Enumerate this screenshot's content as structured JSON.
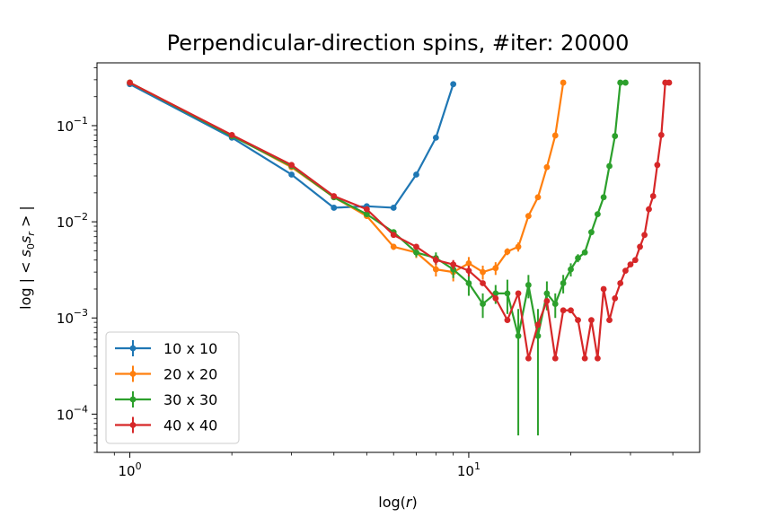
{
  "chart_data": {
    "type": "line",
    "title": "Perpendicular-direction spins, #iter: 20000",
    "xlabel": "log(r)",
    "ylabel": "log | < s0 sr > |",
    "xscale": "log",
    "yscale": "log",
    "xlim": [
      0.8,
      48
    ],
    "ylim": [
      4e-05,
      0.45
    ],
    "xticks": [
      {
        "value": 1,
        "base": "10",
        "exp": "0"
      },
      {
        "value": 10,
        "base": "10",
        "exp": "1"
      }
    ],
    "yticks": [
      {
        "value": 0.0001,
        "base": "10",
        "exp": "−4"
      },
      {
        "value": 0.001,
        "base": "10",
        "exp": "−3"
      },
      {
        "value": 0.01,
        "base": "10",
        "exp": "−2"
      },
      {
        "value": 0.1,
        "base": "10",
        "exp": "−1"
      }
    ],
    "grid": false,
    "legend_position": "lower-left",
    "series": [
      {
        "name": "10 x 10",
        "color": "#1f77b4",
        "x": [
          1,
          2,
          3,
          4,
          5,
          6,
          7,
          8,
          9
        ],
        "y": [
          0.27,
          0.075,
          0.031,
          0.014,
          0.0145,
          0.014,
          0.031,
          0.075,
          0.27
        ],
        "err": [
          0,
          0,
          0,
          0,
          0,
          0,
          0,
          0,
          0
        ]
      },
      {
        "name": "20 x 20",
        "color": "#ff7f0e",
        "x": [
          1,
          2,
          3,
          4,
          5,
          6,
          7,
          8,
          9,
          10,
          11,
          12,
          13,
          14,
          15,
          16,
          17,
          18,
          19
        ],
        "y": [
          0.28,
          0.079,
          0.037,
          0.018,
          0.0115,
          0.0055,
          0.0048,
          0.0032,
          0.003,
          0.0037,
          0.003,
          0.0033,
          0.0049,
          0.0055,
          0.0115,
          0.018,
          0.037,
          0.079,
          0.28
        ],
        "err": [
          0,
          0,
          0,
          0,
          0.0008,
          0.0004,
          0.0006,
          0.0005,
          0.0006,
          0.0006,
          0.0005,
          0.0005,
          0.0004,
          0.0006,
          0.0008,
          0,
          0,
          0,
          0
        ]
      },
      {
        "name": "30 x 30",
        "color": "#2ca02c",
        "x": [
          1,
          2,
          3,
          4,
          5,
          6,
          7,
          8,
          9,
          10,
          11,
          12,
          13,
          14,
          15,
          16,
          17,
          18,
          19,
          20,
          21,
          22,
          23,
          24,
          25,
          26,
          27,
          28,
          29
        ],
        "y": [
          0.28,
          0.078,
          0.038,
          0.018,
          0.012,
          0.0078,
          0.0048,
          0.0042,
          0.0032,
          0.0023,
          0.0014,
          0.0018,
          0.0018,
          0.00065,
          0.0022,
          0.00065,
          0.0018,
          0.0014,
          0.0023,
          0.0032,
          0.0042,
          0.0048,
          0.0078,
          0.012,
          0.018,
          0.038,
          0.078,
          0.28,
          0.28
        ],
        "err": [
          0,
          0,
          0,
          0,
          0,
          0.0004,
          0.0005,
          0.0006,
          0.0006,
          0.0006,
          0.0004,
          0.0004,
          0.0007,
          0.00059,
          0.0006,
          0.00059,
          0.0006,
          0.0004,
          0.0005,
          0.0005,
          0.0004,
          0.0003,
          0,
          0,
          0,
          0,
          0,
          0,
          0
        ]
      },
      {
        "name": "40 x 40",
        "color": "#d62728",
        "x": [
          1,
          2,
          3,
          4,
          5,
          6,
          7,
          8,
          9,
          10,
          11,
          12,
          13,
          14,
          15,
          16,
          17,
          18,
          19,
          20,
          21,
          22,
          23,
          24,
          25,
          26,
          27,
          28,
          29,
          30,
          31,
          32,
          33,
          34,
          35,
          36,
          37,
          38,
          39
        ],
        "y": [
          0.28,
          0.08,
          0.039,
          0.0185,
          0.0135,
          0.0073,
          0.0055,
          0.004,
          0.0036,
          0.0031,
          0.0023,
          0.0016,
          0.00095,
          0.0018,
          0.00038,
          0.00085,
          0.0015,
          0.00038,
          0.0012,
          0.0012,
          0.00095,
          0.00038,
          0.00095,
          0.00038,
          0.002,
          0.00095,
          0.0016,
          0.0023,
          0.0031,
          0.0036,
          0.004,
          0.0055,
          0.0073,
          0.0135,
          0.0185,
          0.039,
          0.08,
          0.28,
          0.28
        ],
        "err": [
          0,
          0,
          0,
          0,
          0,
          0,
          0,
          0.0004,
          0.0004,
          0.0004,
          0,
          0,
          0,
          0,
          0,
          0,
          0,
          0,
          0,
          0,
          0,
          0,
          0,
          0,
          0,
          0,
          0,
          0,
          0,
          0,
          0,
          0,
          0,
          0,
          0,
          0,
          0,
          0,
          0
        ]
      }
    ]
  }
}
